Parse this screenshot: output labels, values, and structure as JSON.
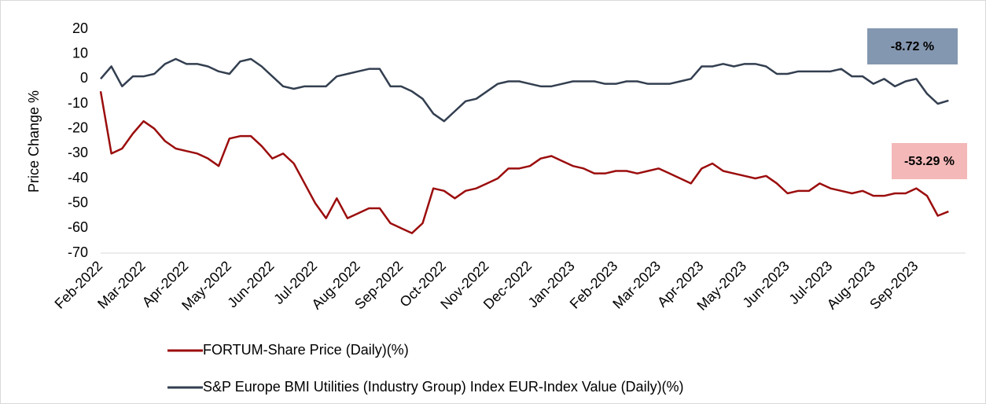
{
  "chart_data": {
    "type": "line",
    "ylabel": "Price  Change %",
    "categories": [
      "Feb-2022",
      null,
      null,
      null,
      "Mar-2022",
      null,
      null,
      null,
      "Apr-2022",
      null,
      null,
      null,
      "May-2022",
      null,
      null,
      null,
      "Jun-2022",
      null,
      null,
      null,
      "Jul-2022",
      null,
      null,
      null,
      "Aug-2022",
      null,
      null,
      null,
      "Sep-2022",
      null,
      null,
      null,
      "Oct-2022",
      null,
      null,
      null,
      "Nov-2022",
      null,
      null,
      null,
      "Dec-2022",
      null,
      null,
      null,
      "Jan-2023",
      null,
      null,
      null,
      "Feb-2023",
      null,
      null,
      null,
      "Mar-2023",
      null,
      null,
      null,
      "Apr-2023",
      null,
      null,
      null,
      "May-2023",
      null,
      null,
      null,
      "Jun-2023",
      null,
      null,
      null,
      "Jul-2023",
      null,
      null,
      null,
      "Aug-2023",
      null,
      null,
      null,
      "Sep-2023",
      null,
      null,
      null
    ],
    "series": [
      {
        "name": "FORTUM-Share Price (Daily)(%)",
        "color": "#9b0d0d",
        "values": [
          -5,
          -30,
          -28,
          -22,
          -17,
          -20,
          -25,
          -28,
          -29,
          -30,
          -32,
          -35,
          -24,
          -23,
          -23,
          -27,
          -32,
          -30,
          -34,
          -42,
          -50,
          -56,
          -48,
          -56,
          -54,
          -52,
          -52,
          -58,
          -60,
          -62,
          -58,
          -44,
          -45,
          -48,
          -45,
          -44,
          -42,
          -40,
          -36,
          -36,
          -35,
          -32,
          -31,
          -33,
          -35,
          -36,
          -38,
          -38,
          -37,
          -37,
          -38,
          -37,
          -36,
          -38,
          -40,
          -42,
          -36,
          -34,
          -37,
          -38,
          -39,
          -40,
          -39,
          -42,
          -46,
          -45,
          -45,
          -42,
          -44,
          -45,
          -46,
          -45,
          -47,
          -47,
          -46,
          -46,
          -44,
          -47,
          -55,
          -53.29
        ]
      },
      {
        "name": "S&P Europe BMI Utilities (Industry Group) Index EUR-Index Value (Daily)(%)",
        "color": "#333f50",
        "values": [
          0,
          5,
          -3,
          1,
          1,
          2,
          6,
          8,
          6,
          6,
          5,
          3,
          2,
          7,
          8,
          5,
          1,
          -3,
          -4,
          -3,
          -3,
          -3,
          1,
          2,
          3,
          4,
          4,
          -3,
          -3,
          -5,
          -8,
          -14,
          -17,
          -13,
          -9,
          -8,
          -5,
          -2,
          -1,
          -1,
          -2,
          -3,
          -3,
          -2,
          -1,
          -1,
          -1,
          -2,
          -2,
          -1,
          -1,
          -2,
          -2,
          -2,
          -1,
          0,
          5,
          5,
          6,
          5,
          6,
          6,
          5,
          2,
          2,
          3,
          3,
          3,
          3,
          4,
          1,
          1,
          -2,
          0,
          -3,
          -1,
          0,
          -6,
          -10,
          -8.72
        ]
      }
    ],
    "annotations": [
      {
        "text": "-8.72 %",
        "color": "#8497b0"
      },
      {
        "text": "-53.29 %",
        "color": "#f4b8b8"
      }
    ],
    "ylim": [
      -70,
      20
    ],
    "yticks": [
      -70,
      -60,
      -50,
      -40,
      -30,
      -20,
      -10,
      0,
      10,
      20
    ]
  }
}
